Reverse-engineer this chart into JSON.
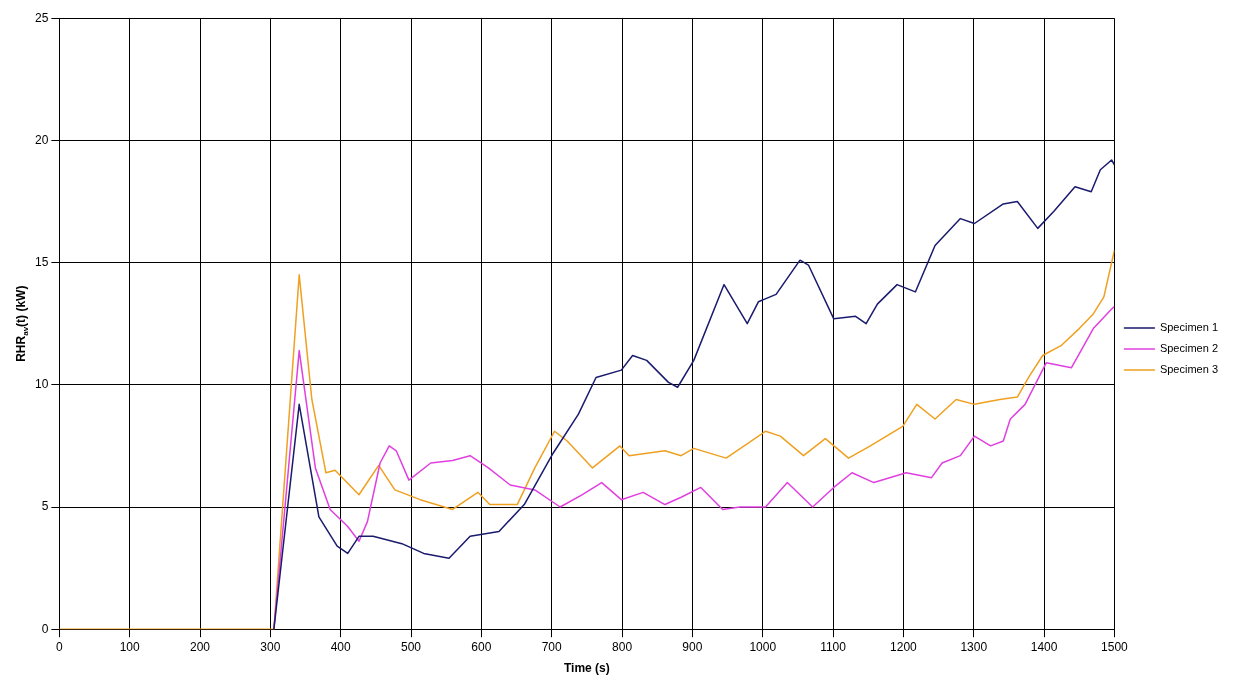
{
  "chart_data": {
    "type": "line",
    "xlabel": "Time (s)",
    "ylabel": "RHR$_{av}$(t) (kW)",
    "xlim": [
      0,
      1500
    ],
    "xticks": [
      0,
      100,
      200,
      300,
      400,
      500,
      600,
      700,
      800,
      900,
      1000,
      1100,
      1200,
      1300,
      1400,
      1500
    ],
    "ylim": [
      0,
      25
    ],
    "yticks": [
      0,
      5,
      10,
      15,
      20,
      25
    ],
    "grid": true,
    "legend": "right",
    "marker": "none",
    "line_style": "solid",
    "series": [
      {
        "name": "Specimen 1",
        "color": "#1a1a6e",
        "x": [
          305,
          341,
          369,
          395,
          410,
          426,
          446,
          487,
          518,
          554,
          584,
          625,
          661,
          702,
          738,
          763,
          799,
          815,
          835,
          866,
          879,
          902,
          945,
          978,
          994,
          1019,
          1053,
          1065,
          1101,
          1132,
          1147,
          1163,
          1191,
          1217,
          1245,
          1281,
          1301,
          1342,
          1362,
          1391,
          1414,
          1444,
          1467,
          1480,
          1496,
          1500
        ],
        "values": [
          0,
          9.2,
          4.6,
          3.4,
          3.1,
          3.8,
          3.8,
          3.5,
          3.1,
          2.9,
          3.8,
          4.0,
          5.1,
          7.2,
          8.8,
          10.3,
          10.6,
          11.2,
          11.0,
          10.1,
          9.9,
          11.0,
          14.1,
          12.5,
          13.4,
          13.7,
          15.1,
          14.9,
          12.7,
          12.8,
          12.5,
          13.3,
          14.1,
          13.8,
          15.7,
          16.8,
          16.6,
          17.4,
          17.5,
          16.4,
          17.1,
          18.1,
          17.9,
          18.8,
          19.2,
          19.0
        ]
      },
      {
        "name": "Specimen 2",
        "color": "#e040e0",
        "x": [
          305,
          341,
          364,
          385,
          410,
          426,
          438,
          456,
          469,
          479,
          497,
          528,
          559,
          584,
          610,
          641,
          676,
          712,
          743,
          771,
          799,
          830,
          861,
          884,
          912,
          943,
          968,
          1004,
          1035,
          1071,
          1101,
          1127,
          1158,
          1204,
          1240,
          1255,
          1281,
          1301,
          1324,
          1342,
          1352,
          1373,
          1403,
          1439,
          1470,
          1496,
          1500
        ],
        "values": [
          0,
          11.4,
          6.6,
          4.9,
          4.2,
          3.6,
          4.4,
          6.8,
          7.5,
          7.3,
          6.1,
          6.8,
          6.9,
          7.1,
          6.6,
          5.9,
          5.7,
          5.0,
          5.5,
          6.0,
          5.3,
          5.6,
          5.1,
          5.4,
          5.8,
          4.9,
          5.0,
          5.0,
          6.0,
          5.0,
          5.8,
          6.4,
          6.0,
          6.4,
          6.2,
          6.8,
          7.1,
          7.9,
          7.5,
          7.7,
          8.6,
          9.2,
          10.9,
          10.7,
          12.3,
          13.1,
          13.2
        ]
      },
      {
        "name": "Specimen 3",
        "color": "#f0a020",
        "x": [
          0,
          305,
          341,
          359,
          379,
          392,
          426,
          454,
          477,
          513,
          559,
          595,
          612,
          651,
          676,
          704,
          722,
          758,
          797,
          810,
          861,
          884,
          902,
          948,
          1004,
          1025,
          1058,
          1089,
          1122,
          1153,
          1199,
          1219,
          1245,
          1275,
          1301,
          1337,
          1362,
          1378,
          1398,
          1424,
          1450,
          1470,
          1485,
          1500
        ],
        "values": [
          0,
          0,
          14.5,
          9.4,
          6.4,
          6.5,
          5.5,
          6.7,
          5.7,
          5.3,
          4.9,
          5.6,
          5.1,
          5.1,
          6.6,
          8.1,
          7.7,
          6.6,
          7.5,
          7.1,
          7.3,
          7.1,
          7.4,
          7.0,
          8.1,
          7.9,
          7.1,
          7.8,
          7.0,
          7.5,
          8.3,
          9.2,
          8.6,
          9.4,
          9.2,
          9.4,
          9.5,
          10.3,
          11.2,
          11.6,
          12.3,
          12.9,
          13.6,
          15.5
        ]
      }
    ]
  }
}
